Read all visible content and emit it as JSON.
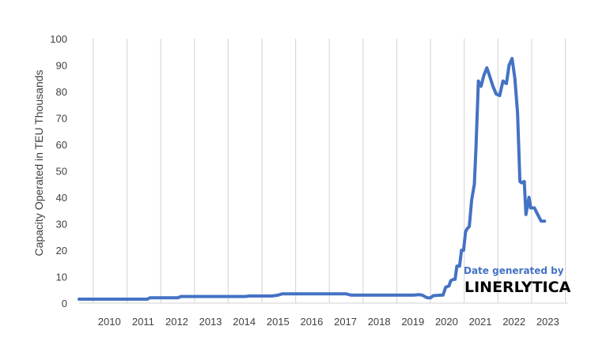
{
  "chart_data": {
    "type": "line",
    "title": "",
    "xlabel": "",
    "ylabel": "Capacity Operated in TEU Thousands",
    "ylim": [
      0,
      100
    ],
    "yticks": [
      0,
      10,
      20,
      30,
      40,
      50,
      60,
      70,
      80,
      90,
      100
    ],
    "xlim": [
      2009.58,
      2024.08
    ],
    "categories": [
      "2010",
      "2011",
      "2012",
      "2013",
      "2014",
      "2015",
      "2016",
      "2017",
      "2018",
      "2019",
      "2020",
      "2021",
      "2022",
      "2023"
    ],
    "grid": "vertical",
    "legend": "none",
    "line_color": "#4472c4",
    "grid_color": "#d9d9d9",
    "series": [
      {
        "x": [
          2009.58,
          2011.0,
          2011.6,
          2011.68,
          2012.5,
          2012.6,
          2013.5,
          2014.5,
          2014.62,
          2015.3,
          2015.48,
          2015.6,
          2016.5,
          2017.0,
          2017.3,
          2017.5,
          2017.65,
          2017.75,
          2018.5,
          2019.0,
          2019.5,
          2019.67,
          2019.75,
          2019.9,
          2020.0,
          2020.08,
          2020.3,
          2020.37,
          2020.45,
          2020.55,
          2020.6,
          2020.68,
          2020.73,
          2020.78,
          2020.86,
          2020.92,
          2020.98,
          2021.04,
          2021.08,
          2021.15,
          2021.22,
          2021.3,
          2021.35,
          2021.42,
          2021.5,
          2021.58,
          2021.67,
          2021.75,
          2021.85,
          2021.95,
          2022.05,
          2022.15,
          2022.25,
          2022.33,
          2022.42,
          2022.5,
          2022.58,
          2022.65,
          2022.7,
          2022.78,
          2022.83,
          2022.92,
          2022.97,
          2023.02,
          2023.08,
          2023.18,
          2023.28,
          2023.38
        ],
        "values": [
          1.5,
          1.5,
          1.5,
          2.0,
          2.0,
          2.5,
          2.5,
          2.5,
          2.7,
          2.7,
          3.0,
          3.5,
          3.5,
          3.5,
          3.5,
          3.5,
          3.0,
          3.0,
          3.0,
          3.0,
          3.0,
          3.2,
          3.0,
          2.0,
          2.0,
          2.8,
          3.0,
          3.0,
          6.0,
          6.5,
          8.5,
          9.0,
          9.0,
          14.0,
          14.0,
          20.0,
          20.0,
          27.0,
          28.0,
          29.0,
          39.0,
          45.0,
          59.0,
          84.0,
          82.0,
          86.0,
          89.0,
          86.0,
          82.0,
          79.0,
          78.5,
          84.0,
          83.0,
          90.0,
          92.5,
          85.0,
          72.0,
          46.0,
          45.5,
          46.0,
          33.5,
          40.0,
          36.0,
          36.0,
          36.0,
          33.5,
          31.0,
          31.0
        ]
      }
    ]
  },
  "watermark": {
    "line1": "Date generated by",
    "line2": "LINERLYTICA"
  }
}
